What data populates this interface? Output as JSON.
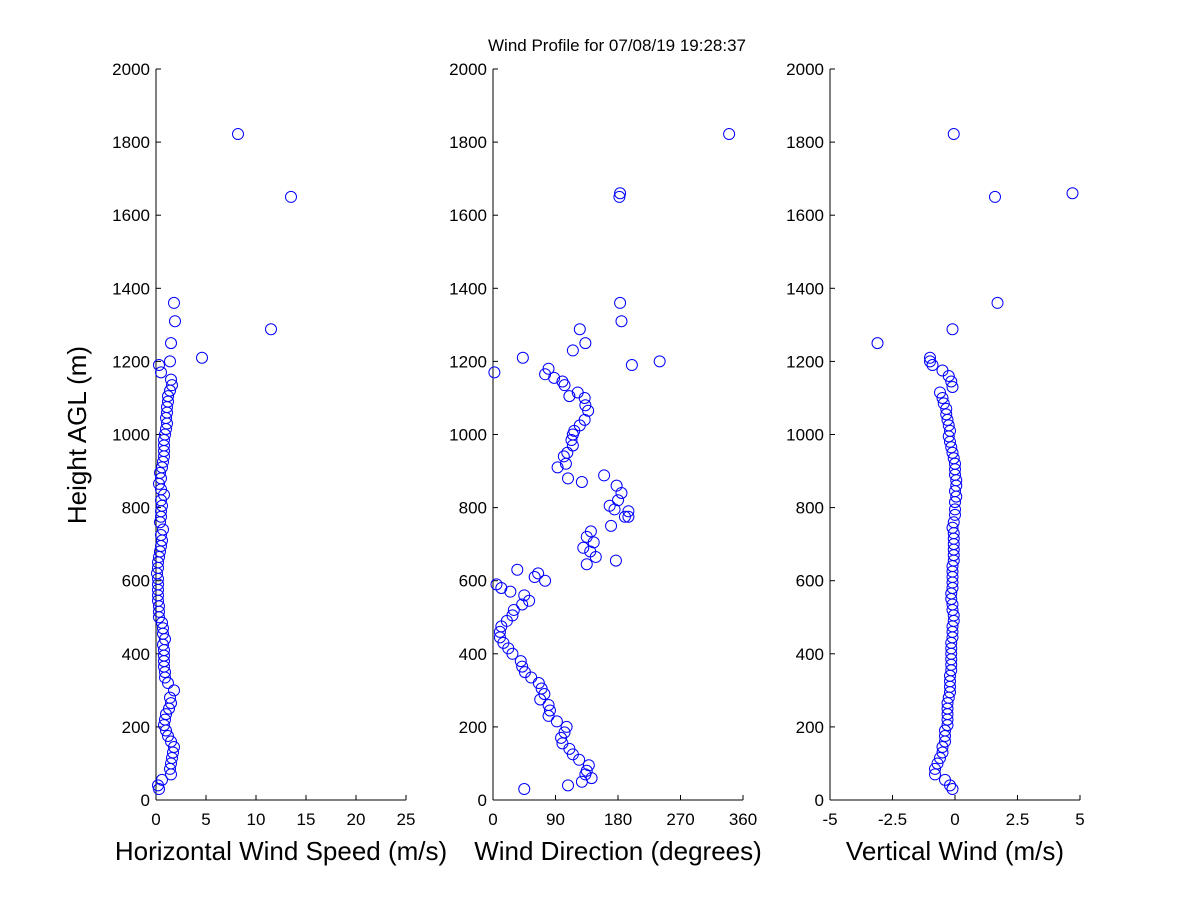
{
  "figure_title": "Wind Profile for  07/08/19 19:28:37",
  "ylabel": "Height AGL (m)",
  "marker_color": "#0000ff",
  "chart_data": [
    {
      "type": "scatter",
      "xlabel": "Horizontal Wind Speed (m/s)",
      "xlim": [
        0,
        25
      ],
      "xticks": [
        "0",
        "5",
        "10",
        "15",
        "20",
        "25"
      ],
      "xtick_values": [
        0,
        5,
        10,
        15,
        20,
        25
      ],
      "ylim": [
        0,
        2000
      ],
      "yticks": [
        "0",
        "200",
        "400",
        "600",
        "800",
        "1000",
        "1200",
        "1400",
        "1600",
        "1800",
        "2000"
      ],
      "ytick_values": [
        0,
        200,
        400,
        600,
        800,
        1000,
        1200,
        1400,
        1600,
        1800,
        2000
      ],
      "points": [
        [
          0.3,
          30
        ],
        [
          0.2,
          40
        ],
        [
          0.6,
          55
        ],
        [
          1.5,
          70
        ],
        [
          1.4,
          85
        ],
        [
          1.5,
          100
        ],
        [
          1.6,
          115
        ],
        [
          1.7,
          130
        ],
        [
          1.8,
          145
        ],
        [
          1.5,
          160
        ],
        [
          1.2,
          175
        ],
        [
          1.0,
          190
        ],
        [
          0.8,
          205
        ],
        [
          0.9,
          220
        ],
        [
          1.0,
          235
        ],
        [
          1.3,
          250
        ],
        [
          1.5,
          265
        ],
        [
          1.4,
          280
        ],
        [
          1.8,
          300
        ],
        [
          1.2,
          320
        ],
        [
          0.9,
          335
        ],
        [
          0.9,
          350
        ],
        [
          0.8,
          365
        ],
        [
          0.8,
          380
        ],
        [
          0.8,
          395
        ],
        [
          0.8,
          410
        ],
        [
          0.7,
          425
        ],
        [
          0.9,
          440
        ],
        [
          0.7,
          455
        ],
        [
          0.7,
          470
        ],
        [
          0.6,
          485
        ],
        [
          0.3,
          500
        ],
        [
          0.3,
          515
        ],
        [
          0.3,
          530
        ],
        [
          0.2,
          545
        ],
        [
          0.2,
          560
        ],
        [
          0.2,
          575
        ],
        [
          0.2,
          590
        ],
        [
          0.2,
          605
        ],
        [
          0.1,
          620
        ],
        [
          0.2,
          635
        ],
        [
          0.2,
          650
        ],
        [
          0.3,
          665
        ],
        [
          0.4,
          680
        ],
        [
          0.5,
          695
        ],
        [
          0.6,
          710
        ],
        [
          0.5,
          725
        ],
        [
          0.7,
          740
        ],
        [
          0.4,
          760
        ],
        [
          0.5,
          775
        ],
        [
          0.5,
          790
        ],
        [
          0.6,
          805
        ],
        [
          0.5,
          820
        ],
        [
          0.8,
          835
        ],
        [
          0.5,
          850
        ],
        [
          0.3,
          865
        ],
        [
          0.5,
          880
        ],
        [
          0.4,
          895
        ],
        [
          0.6,
          910
        ],
        [
          0.7,
          925
        ],
        [
          0.8,
          940
        ],
        [
          0.8,
          955
        ],
        [
          0.8,
          970
        ],
        [
          0.8,
          985
        ],
        [
          0.9,
          1000
        ],
        [
          1.0,
          1015
        ],
        [
          1.1,
          1030
        ],
        [
          1.0,
          1045
        ],
        [
          1.1,
          1060
        ],
        [
          1.1,
          1075
        ],
        [
          1.2,
          1090
        ],
        [
          1.2,
          1105
        ],
        [
          1.4,
          1120
        ],
        [
          1.6,
          1135
        ],
        [
          1.5,
          1150
        ],
        [
          0.5,
          1170
        ],
        [
          0.3,
          1190
        ],
        [
          1.4,
          1200
        ],
        [
          4.6,
          1210
        ],
        [
          1.5,
          1250
        ],
        [
          11.5,
          1288
        ],
        [
          1.9,
          1310
        ],
        [
          1.8,
          1360
        ],
        [
          13.5,
          1650
        ],
        [
          8.2,
          1822
        ]
      ]
    },
    {
      "type": "scatter",
      "xlabel": "Wind Direction (degrees)",
      "xlim": [
        0,
        360
      ],
      "xticks": [
        "0",
        "90",
        "180",
        "270",
        "360"
      ],
      "xtick_values": [
        0,
        90,
        180,
        270,
        360
      ],
      "ylim": [
        0,
        2000
      ],
      "yticks": [
        "0",
        "200",
        "400",
        "600",
        "800",
        "1000",
        "1200",
        "1400",
        "1600",
        "1800",
        "2000"
      ],
      "ytick_values": [
        0,
        200,
        400,
        600,
        800,
        1000,
        1200,
        1400,
        1600,
        1800,
        2000
      ],
      "points": [
        [
          45,
          30
        ],
        [
          108,
          40
        ],
        [
          128,
          50
        ],
        [
          142,
          60
        ],
        [
          133,
          70
        ],
        [
          135,
          80
        ],
        [
          138,
          95
        ],
        [
          124,
          110
        ],
        [
          115,
          125
        ],
        [
          110,
          140
        ],
        [
          100,
          155
        ],
        [
          98,
          170
        ],
        [
          103,
          185
        ],
        [
          106,
          200
        ],
        [
          92,
          215
        ],
        [
          80,
          230
        ],
        [
          82,
          245
        ],
        [
          80,
          260
        ],
        [
          68,
          275
        ],
        [
          74,
          290
        ],
        [
          70,
          305
        ],
        [
          66,
          320
        ],
        [
          55,
          335
        ],
        [
          46,
          350
        ],
        [
          42,
          365
        ],
        [
          40,
          380
        ],
        [
          28,
          400
        ],
        [
          22,
          415
        ],
        [
          15,
          430
        ],
        [
          10,
          445
        ],
        [
          10,
          460
        ],
        [
          12,
          475
        ],
        [
          20,
          490
        ],
        [
          28,
          505
        ],
        [
          30,
          520
        ],
        [
          42,
          535
        ],
        [
          52,
          545
        ],
        [
          45,
          560
        ],
        [
          25,
          570
        ],
        [
          12,
          580
        ],
        [
          5,
          590
        ],
        [
          75,
          600
        ],
        [
          60,
          610
        ],
        [
          65,
          620
        ],
        [
          35,
          630
        ],
        [
          135,
          645
        ],
        [
          177,
          655
        ],
        [
          148,
          665
        ],
        [
          140,
          680
        ],
        [
          130,
          690
        ],
        [
          145,
          705
        ],
        [
          135,
          720
        ],
        [
          141,
          735
        ],
        [
          170,
          750
        ],
        [
          168,
          805
        ],
        [
          180,
          820
        ],
        [
          185,
          840
        ],
        [
          195,
          775
        ],
        [
          175,
          795
        ],
        [
          190,
          775
        ],
        [
          195,
          790
        ],
        [
          178,
          860
        ],
        [
          160,
          888
        ],
        [
          128,
          870
        ],
        [
          108,
          880
        ],
        [
          93,
          910
        ],
        [
          105,
          920
        ],
        [
          102,
          940
        ],
        [
          107,
          950
        ],
        [
          115,
          970
        ],
        [
          113,
          985
        ],
        [
          115,
          1000
        ],
        [
          117,
          1010
        ],
        [
          125,
          1025
        ],
        [
          132,
          1040
        ],
        [
          137,
          1065
        ],
        [
          133,
          1080
        ],
        [
          132,
          1100
        ],
        [
          110,
          1105
        ],
        [
          122,
          1115
        ],
        [
          103,
          1135
        ],
        [
          100,
          1145
        ],
        [
          88,
          1155
        ],
        [
          75,
          1165
        ],
        [
          80,
          1180
        ],
        [
          2,
          1170
        ],
        [
          43,
          1210
        ],
        [
          115,
          1230
        ],
        [
          133,
          1250
        ],
        [
          200,
          1190
        ],
        [
          240,
          1200
        ],
        [
          125,
          1288
        ],
        [
          185,
          1310
        ],
        [
          183,
          1360
        ],
        [
          182,
          1650
        ],
        [
          183,
          1660
        ],
        [
          340,
          1822
        ]
      ]
    },
    {
      "type": "scatter",
      "xlabel": "Vertical Wind (m/s)",
      "xlim": [
        -5,
        5
      ],
      "xticks": [
        "-5",
        "-2.5",
        "0",
        "2.5",
        "5"
      ],
      "xtick_values": [
        -5,
        -2.5,
        0,
        2.5,
        5
      ],
      "ylim": [
        0,
        2000
      ],
      "yticks": [
        "0",
        "200",
        "400",
        "600",
        "800",
        "1000",
        "1200",
        "1400",
        "1600",
        "1800",
        "2000"
      ],
      "ytick_values": [
        0,
        200,
        400,
        600,
        800,
        1000,
        1200,
        1400,
        1600,
        1800,
        2000
      ],
      "points": [
        [
          -0.1,
          30
        ],
        [
          -0.2,
          40
        ],
        [
          -0.4,
          55
        ],
        [
          -0.8,
          70
        ],
        [
          -0.8,
          85
        ],
        [
          -0.7,
          100
        ],
        [
          -0.6,
          115
        ],
        [
          -0.5,
          130
        ],
        [
          -0.5,
          145
        ],
        [
          -0.4,
          160
        ],
        [
          -0.4,
          175
        ],
        [
          -0.4,
          190
        ],
        [
          -0.3,
          205
        ],
        [
          -0.3,
          220
        ],
        [
          -0.3,
          235
        ],
        [
          -0.3,
          250
        ],
        [
          -0.3,
          265
        ],
        [
          -0.25,
          280
        ],
        [
          -0.2,
          295
        ],
        [
          -0.2,
          310
        ],
        [
          -0.2,
          325
        ],
        [
          -0.2,
          340
        ],
        [
          -0.15,
          355
        ],
        [
          -0.15,
          370
        ],
        [
          -0.15,
          385
        ],
        [
          -0.15,
          400
        ],
        [
          -0.15,
          415
        ],
        [
          -0.15,
          430
        ],
        [
          -0.1,
          445
        ],
        [
          -0.1,
          460
        ],
        [
          -0.1,
          475
        ],
        [
          -0.05,
          490
        ],
        [
          -0.05,
          505
        ],
        [
          -0.1,
          520
        ],
        [
          -0.1,
          535
        ],
        [
          -0.15,
          550
        ],
        [
          -0.15,
          565
        ],
        [
          -0.1,
          580
        ],
        [
          -0.1,
          595
        ],
        [
          -0.1,
          610
        ],
        [
          -0.1,
          625
        ],
        [
          -0.1,
          640
        ],
        [
          -0.05,
          655
        ],
        [
          -0.05,
          670
        ],
        [
          -0.05,
          685
        ],
        [
          -0.05,
          700
        ],
        [
          -0.05,
          715
        ],
        [
          -0.05,
          730
        ],
        [
          -0.1,
          745
        ],
        [
          -0.05,
          760
        ],
        [
          0.0,
          780
        ],
        [
          0.0,
          795
        ],
        [
          0.0,
          815
        ],
        [
          0.05,
          830
        ],
        [
          0.0,
          845
        ],
        [
          0.05,
          860
        ],
        [
          0.05,
          875
        ],
        [
          0.0,
          890
        ],
        [
          0.0,
          905
        ],
        [
          0.0,
          920
        ],
        [
          -0.05,
          935
        ],
        [
          -0.1,
          950
        ],
        [
          -0.15,
          965
        ],
        [
          -0.2,
          980
        ],
        [
          -0.25,
          995
        ],
        [
          -0.2,
          1010
        ],
        [
          -0.25,
          1025
        ],
        [
          -0.3,
          1040
        ],
        [
          -0.35,
          1055
        ],
        [
          -0.35,
          1070
        ],
        [
          -0.45,
          1085
        ],
        [
          -0.5,
          1100
        ],
        [
          -0.6,
          1115
        ],
        [
          -0.1,
          1130
        ],
        [
          -0.15,
          1145
        ],
        [
          -0.25,
          1160
        ],
        [
          -0.5,
          1175
        ],
        [
          -0.9,
          1190
        ],
        [
          -1.0,
          1200
        ],
        [
          -1.0,
          1210
        ],
        [
          -3.1,
          1250
        ],
        [
          -0.1,
          1288
        ],
        [
          1.7,
          1360
        ],
        [
          1.6,
          1650
        ],
        [
          4.7,
          1660
        ],
        [
          -0.05,
          1822
        ]
      ]
    }
  ]
}
